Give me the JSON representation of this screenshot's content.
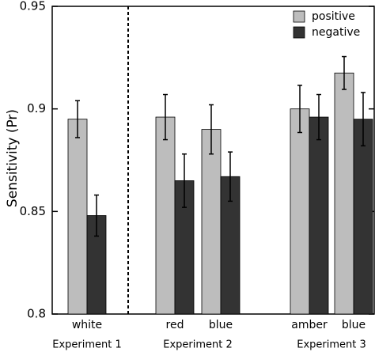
{
  "chart_data": {
    "type": "bar",
    "y_label": "Sensitivity (Pr)",
    "groups": [
      {
        "name": "Experiment 1",
        "categories": [
          "white"
        ]
      },
      {
        "name": "Experiment 2",
        "categories": [
          "red",
          "blue"
        ]
      },
      {
        "name": "Experiment 3",
        "categories": [
          "amber",
          "blue"
        ]
      }
    ],
    "series": [
      {
        "name": "positive",
        "color": "#bdbdbd",
        "values": [
          0.895,
          0.896,
          0.89,
          0.9,
          0.9175
        ],
        "errors": [
          0.009,
          0.011,
          0.012,
          0.0115,
          0.008
        ]
      },
      {
        "name": "negative",
        "color": "#333333",
        "values": [
          0.848,
          0.865,
          0.867,
          0.896,
          0.895
        ],
        "errors": [
          0.01,
          0.013,
          0.012,
          0.011,
          0.013
        ]
      }
    ],
    "ylim": [
      0.8,
      0.95
    ],
    "yticks": [
      0.8,
      0.85,
      0.9,
      0.95
    ],
    "legend": "top-right"
  }
}
